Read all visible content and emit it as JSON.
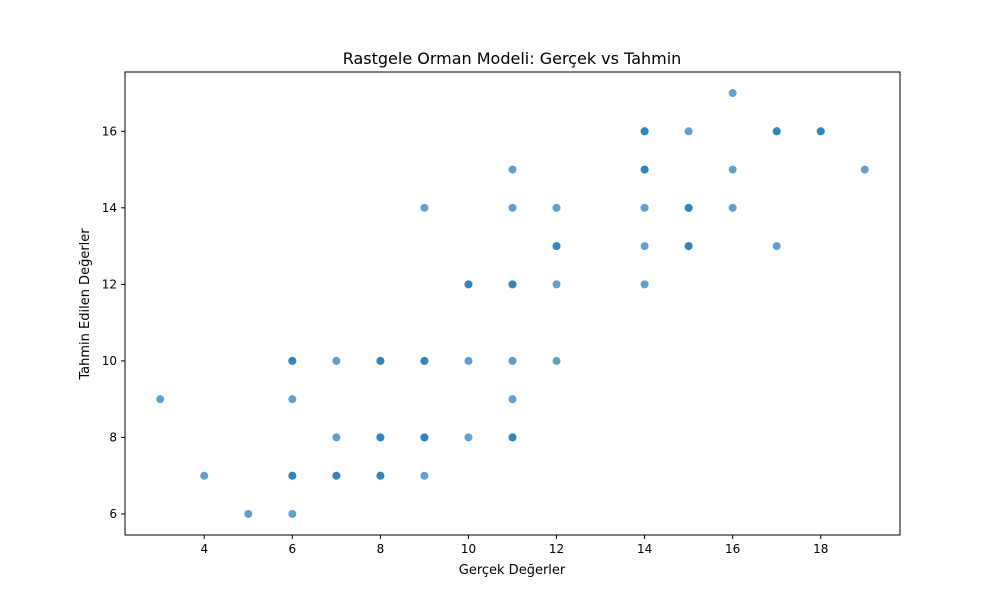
{
  "chart_data": {
    "type": "scatter",
    "title": "Rastgele Orman Modeli: Gerçek vs Tahmin",
    "xlabel": "Gerçek Değerler",
    "ylabel": "Tahmin Edilen Değerler",
    "xlim": [
      2.2,
      19.8
    ],
    "ylim": [
      5.45,
      17.55
    ],
    "xticks": [
      4,
      6,
      8,
      10,
      12,
      14,
      16,
      18
    ],
    "yticks": [
      6,
      8,
      10,
      12,
      14,
      16
    ],
    "grid": false,
    "legend": "none",
    "point_color": "#1f77b4",
    "point_opacity": 0.7,
    "points": [
      {
        "x": 3,
        "y": 9
      },
      {
        "x": 4,
        "y": 7
      },
      {
        "x": 5,
        "y": 6
      },
      {
        "x": 6,
        "y": 6
      },
      {
        "x": 6,
        "y": 7
      },
      {
        "x": 6,
        "y": 7
      },
      {
        "x": 6,
        "y": 9
      },
      {
        "x": 6,
        "y": 10
      },
      {
        "x": 6,
        "y": 10
      },
      {
        "x": 7,
        "y": 7
      },
      {
        "x": 7,
        "y": 7
      },
      {
        "x": 7,
        "y": 8
      },
      {
        "x": 7,
        "y": 10
      },
      {
        "x": 8,
        "y": 7
      },
      {
        "x": 8,
        "y": 7
      },
      {
        "x": 8,
        "y": 8
      },
      {
        "x": 8,
        "y": 8
      },
      {
        "x": 8,
        "y": 10
      },
      {
        "x": 8,
        "y": 10
      },
      {
        "x": 9,
        "y": 7
      },
      {
        "x": 9,
        "y": 8
      },
      {
        "x": 9,
        "y": 8
      },
      {
        "x": 9,
        "y": 10
      },
      {
        "x": 9,
        "y": 10
      },
      {
        "x": 9,
        "y": 14
      },
      {
        "x": 10,
        "y": 8
      },
      {
        "x": 10,
        "y": 10
      },
      {
        "x": 10,
        "y": 12
      },
      {
        "x": 10,
        "y": 12
      },
      {
        "x": 11,
        "y": 8
      },
      {
        "x": 11,
        "y": 8
      },
      {
        "x": 11,
        "y": 9
      },
      {
        "x": 11,
        "y": 10
      },
      {
        "x": 11,
        "y": 12
      },
      {
        "x": 11,
        "y": 12
      },
      {
        "x": 11,
        "y": 14
      },
      {
        "x": 11,
        "y": 15
      },
      {
        "x": 12,
        "y": 10
      },
      {
        "x": 12,
        "y": 12
      },
      {
        "x": 12,
        "y": 13
      },
      {
        "x": 12,
        "y": 13
      },
      {
        "x": 12,
        "y": 14
      },
      {
        "x": 14,
        "y": 12
      },
      {
        "x": 14,
        "y": 13
      },
      {
        "x": 14,
        "y": 14
      },
      {
        "x": 14,
        "y": 15
      },
      {
        "x": 14,
        "y": 15
      },
      {
        "x": 14,
        "y": 16
      },
      {
        "x": 14,
        "y": 16
      },
      {
        "x": 15,
        "y": 13
      },
      {
        "x": 15,
        "y": 13
      },
      {
        "x": 15,
        "y": 14
      },
      {
        "x": 15,
        "y": 14
      },
      {
        "x": 15,
        "y": 16
      },
      {
        "x": 16,
        "y": 14
      },
      {
        "x": 16,
        "y": 15
      },
      {
        "x": 16,
        "y": 17
      },
      {
        "x": 17,
        "y": 13
      },
      {
        "x": 17,
        "y": 16
      },
      {
        "x": 17,
        "y": 16
      },
      {
        "x": 18,
        "y": 16
      },
      {
        "x": 18,
        "y": 16
      },
      {
        "x": 19,
        "y": 15
      }
    ]
  }
}
